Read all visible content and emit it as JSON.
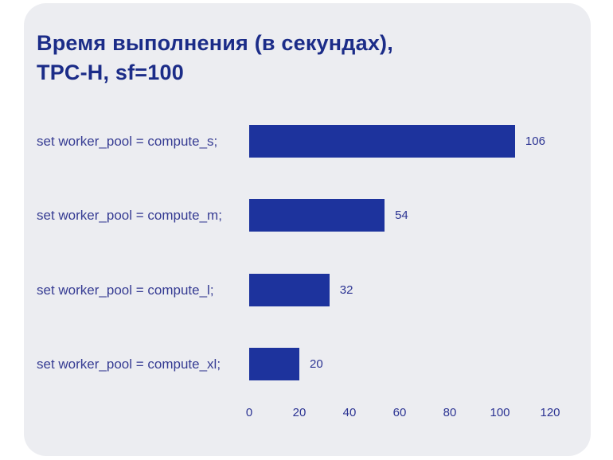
{
  "title": {
    "line1": "Время выполнения (в секундах),",
    "line2": "TPC-H, sf=100"
  },
  "colors": {
    "background": "#ffffff",
    "card": "#ecedf1",
    "bar": "#1d339d",
    "title_text": "#1b2c88",
    "label_text": "#363c93",
    "value_text": "#2c3493",
    "axis_text": "#2c3493"
  },
  "chart_data": {
    "type": "bar",
    "orientation": "horizontal",
    "title": "Время выполнения (в секундах), TPC-H, sf=100",
    "categories": [
      "set worker_pool = compute_s;",
      "set worker_pool = compute_m;",
      "set worker_pool = compute_l;",
      "set worker_pool = compute_xl;"
    ],
    "values": [
      106,
      54,
      32,
      20
    ],
    "xlabel": "",
    "ylabel": "",
    "xlim": [
      0,
      120
    ],
    "ticks": [
      0,
      20,
      40,
      60,
      80,
      100,
      120
    ],
    "grid": false,
    "legend": "none",
    "value_labels_shown": true
  }
}
